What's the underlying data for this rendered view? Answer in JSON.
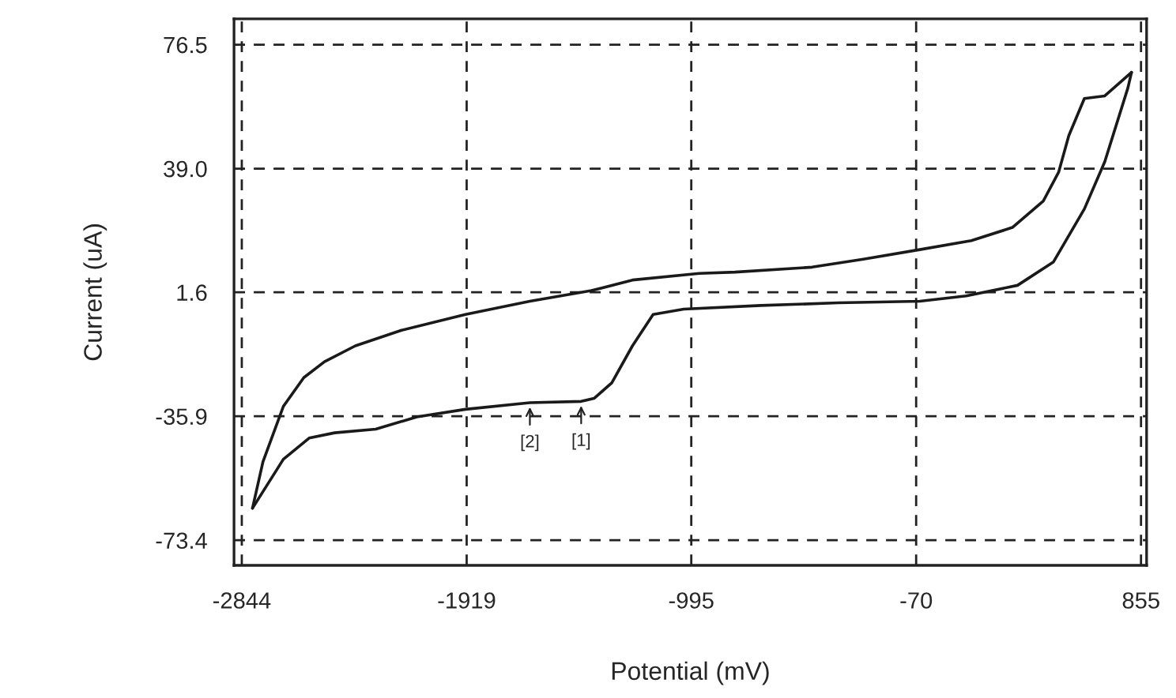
{
  "chart_data": {
    "type": "line",
    "xlabel": "Potential (mV)",
    "ylabel": "Current (uA)",
    "xlim": [
      -2876,
      878
    ],
    "ylim": [
      -81.0,
      84.3
    ],
    "xticks": [
      -2844,
      -1919,
      -995,
      -70,
      855
    ],
    "yticks": [
      -73.4,
      -35.9,
      1.6,
      {
        "value": 39,
        "label": "39.0"
      },
      76.5
    ],
    "grid": true,
    "series": [
      {
        "color": "#1a1a1a",
        "x": [
          -2800,
          -2757,
          -2673,
          -2589,
          -2504,
          -2377,
          -2187,
          -1924,
          -1659,
          -1406,
          -1237,
          -962,
          -815,
          -498,
          -287,
          -55,
          157,
          326,
          453,
          516,
          558,
          622,
          706,
          816
        ],
        "values": [
          -63.7,
          -49.7,
          -32.9,
          -24.2,
          -19.4,
          -14.6,
          -9.9,
          -5.1,
          -1.1,
          2.1,
          5.3,
          7.3,
          7.7,
          9.2,
          11.6,
          14.5,
          17.2,
          21.2,
          29.2,
          37.9,
          49.0,
          60.2,
          61.0,
          68.1
        ]
      },
      {
        "color": "#1a1a1a",
        "x": [
          816,
          801,
          706,
          622,
          495,
          347,
          136,
          -55,
          -392,
          -709,
          -1026,
          -1152,
          -1237,
          -1322,
          -1395,
          -1448,
          -1659,
          -1924,
          -2124,
          -2293,
          -2462,
          -2567,
          -2673,
          -2800
        ],
        "values": [
          68.1,
          63.4,
          41.1,
          26.8,
          10.8,
          3.7,
          0.5,
          -1.1,
          -1.6,
          -2.4,
          -3.5,
          -5.1,
          -14.6,
          -25.8,
          -30.5,
          -31.4,
          -31.8,
          -33.8,
          -36.1,
          -39.8,
          -40.9,
          -42.5,
          -48.9,
          -63.7
        ]
      }
    ],
    "annotations": [
      {
        "text": "[1]",
        "x": -1448,
        "y": -31.4
      },
      {
        "text": "[2]",
        "x": -1659,
        "y": -31.8
      }
    ]
  }
}
